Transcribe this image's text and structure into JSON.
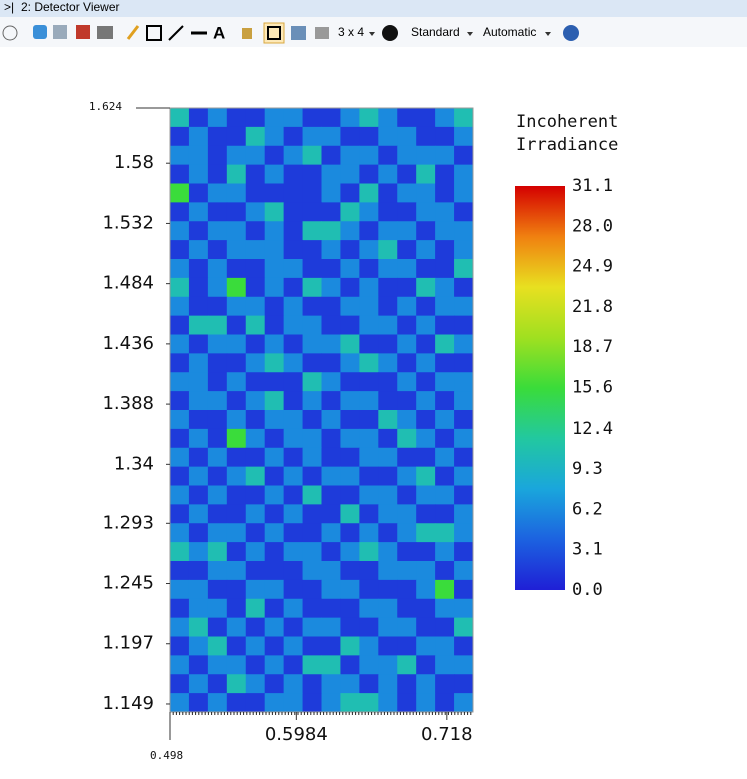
{
  "window": {
    "title": "2: Detector Viewer",
    "toolbar": [
      "3 x 4",
      "Standard",
      "Automatic"
    ]
  },
  "chart_data": {
    "type": "heatmap",
    "colorbar_title": [
      "Incoherent",
      "Irradiance"
    ],
    "xlim": [
      0.498,
      0.7388
    ],
    "ylim": [
      1.1426,
      1.624
    ],
    "xticks": [
      0.498,
      0.5984,
      0.718
    ],
    "yticks": [
      1.149,
      1.197,
      1.245,
      1.293,
      1.34,
      1.388,
      1.436,
      1.484,
      1.532,
      1.58,
      1.624
    ],
    "zlim": [
      0,
      31.1
    ],
    "zticks": [
      {
        "value": 0,
        "label": "0.0"
      },
      3.1,
      6.2,
      9.3,
      12.4,
      15.6,
      18.7,
      21.8,
      24.9,
      {
        "value": 28,
        "label": "28.0"
      },
      31.1
    ],
    "colorscale": [
      "#1f1fd6",
      "#1c62e0",
      "#1aa6dc",
      "#22c8a0",
      "#3adc3a",
      "#a0e020",
      "#e8e020",
      "#f08010",
      "#d40000"
    ],
    "z": [
      [
        10.5,
        1.6,
        6.2,
        1.6,
        1.6,
        6.2,
        6.2,
        1.6,
        1.6,
        6.2,
        10.5,
        6.2,
        1.6,
        1.6,
        6.2,
        10.5
      ],
      [
        1.6,
        6.2,
        1.6,
        1.6,
        10.5,
        6.2,
        1.6,
        6.2,
        6.2,
        1.6,
        1.6,
        6.2,
        6.2,
        1.6,
        1.6,
        6.2
      ],
      [
        6.2,
        6.2,
        1.6,
        6.2,
        6.2,
        1.6,
        6.2,
        10.5,
        1.6,
        6.2,
        6.2,
        1.6,
        6.2,
        6.2,
        6.2,
        1.6
      ],
      [
        1.6,
        6.2,
        1.6,
        10.5,
        1.6,
        6.2,
        1.6,
        1.6,
        6.2,
        6.2,
        1.6,
        6.2,
        1.6,
        10.5,
        1.6,
        6.2
      ],
      [
        15.5,
        1.6,
        6.2,
        6.2,
        1.6,
        1.6,
        1.6,
        1.6,
        6.2,
        1.6,
        10.5,
        1.6,
        6.2,
        6.2,
        1.6,
        6.2
      ],
      [
        1.6,
        6.2,
        1.6,
        1.6,
        6.2,
        10.5,
        1.6,
        1.6,
        1.6,
        10.5,
        6.2,
        1.6,
        1.6,
        6.2,
        6.2,
        1.6
      ],
      [
        6.2,
        1.6,
        6.2,
        6.2,
        1.6,
        6.2,
        1.6,
        10.5,
        10.5,
        6.2,
        1.6,
        6.2,
        6.2,
        1.6,
        6.2,
        6.2
      ],
      [
        1.6,
        6.2,
        1.6,
        6.2,
        6.2,
        6.2,
        1.6,
        1.6,
        6.2,
        1.6,
        6.2,
        10.5,
        1.6,
        6.2,
        1.6,
        6.2
      ],
      [
        6.2,
        1.6,
        6.2,
        1.6,
        1.6,
        6.2,
        6.2,
        1.6,
        1.6,
        6.2,
        1.6,
        6.2,
        6.2,
        1.6,
        1.6,
        10.5
      ],
      [
        10.5,
        1.6,
        6.2,
        15.5,
        1.6,
        6.2,
        1.6,
        10.5,
        6.2,
        1.6,
        6.2,
        1.6,
        1.6,
        10.5,
        6.2,
        1.6
      ],
      [
        6.2,
        1.6,
        1.6,
        6.2,
        6.2,
        1.6,
        6.2,
        1.6,
        1.6,
        6.2,
        6.2,
        1.6,
        6.2,
        1.6,
        6.2,
        6.2
      ],
      [
        1.6,
        10.5,
        10.5,
        1.6,
        10.5,
        1.6,
        6.2,
        6.2,
        1.6,
        1.6,
        6.2,
        6.2,
        1.6,
        6.2,
        1.6,
        1.6
      ],
      [
        6.2,
        1.6,
        6.2,
        6.2,
        1.6,
        6.2,
        1.6,
        6.2,
        6.2,
        10.5,
        1.6,
        1.6,
        6.2,
        1.6,
        10.5,
        6.2
      ],
      [
        1.6,
        6.2,
        1.6,
        1.6,
        6.2,
        10.5,
        6.2,
        1.6,
        1.6,
        6.2,
        10.5,
        6.2,
        1.6,
        6.2,
        1.6,
        1.6
      ],
      [
        6.2,
        6.2,
        1.6,
        6.2,
        1.6,
        1.6,
        1.6,
        10.5,
        6.2,
        1.6,
        1.6,
        1.6,
        6.2,
        1.6,
        6.2,
        6.2
      ],
      [
        1.6,
        6.2,
        6.2,
        1.6,
        6.2,
        10.5,
        1.6,
        6.2,
        1.6,
        6.2,
        6.2,
        1.6,
        1.6,
        6.2,
        1.6,
        6.2
      ],
      [
        6.2,
        1.6,
        1.6,
        6.2,
        1.6,
        6.2,
        6.2,
        1.6,
        6.2,
        1.6,
        1.6,
        10.5,
        6.2,
        1.6,
        6.2,
        1.6
      ],
      [
        1.6,
        6.2,
        1.6,
        15.5,
        6.2,
        1.6,
        6.2,
        6.2,
        1.6,
        6.2,
        6.2,
        1.6,
        10.5,
        6.2,
        1.6,
        6.2
      ],
      [
        6.2,
        1.6,
        6.2,
        1.6,
        1.6,
        6.2,
        1.6,
        6.2,
        1.6,
        1.6,
        6.2,
        6.2,
        1.6,
        1.6,
        6.2,
        1.6
      ],
      [
        1.6,
        6.2,
        1.6,
        6.2,
        10.5,
        1.6,
        6.2,
        1.6,
        6.2,
        6.2,
        1.6,
        1.6,
        6.2,
        10.5,
        1.6,
        6.2
      ],
      [
        6.2,
        1.6,
        6.2,
        1.6,
        1.6,
        6.2,
        1.6,
        10.5,
        1.6,
        1.6,
        6.2,
        6.2,
        1.6,
        6.2,
        6.2,
        1.6
      ],
      [
        1.6,
        6.2,
        1.6,
        1.6,
        6.2,
        1.6,
        6.2,
        1.6,
        1.6,
        10.5,
        1.6,
        6.2,
        6.2,
        1.6,
        1.6,
        6.2
      ],
      [
        6.2,
        1.6,
        6.2,
        6.2,
        1.6,
        6.2,
        1.6,
        1.6,
        6.2,
        1.6,
        6.2,
        1.6,
        6.2,
        10.5,
        10.5,
        6.2
      ],
      [
        10.5,
        6.2,
        10.5,
        1.6,
        6.2,
        1.6,
        6.2,
        6.2,
        1.6,
        6.2,
        10.5,
        6.2,
        1.6,
        1.6,
        6.2,
        1.6
      ],
      [
        1.6,
        1.6,
        6.2,
        6.2,
        1.6,
        1.6,
        1.6,
        6.2,
        6.2,
        1.6,
        1.6,
        6.2,
        6.2,
        6.2,
        1.6,
        6.2
      ],
      [
        6.2,
        6.2,
        1.6,
        1.6,
        6.2,
        6.2,
        1.6,
        1.6,
        6.2,
        6.2,
        1.6,
        1.6,
        1.6,
        6.2,
        15.5,
        1.6
      ],
      [
        1.6,
        6.2,
        6.2,
        1.6,
        10.5,
        1.6,
        6.2,
        1.6,
        1.6,
        1.6,
        6.2,
        6.2,
        1.6,
        1.6,
        6.2,
        6.2
      ],
      [
        6.2,
        10.5,
        1.6,
        6.2,
        1.6,
        6.2,
        1.6,
        6.2,
        6.2,
        1.6,
        1.6,
        6.2,
        6.2,
        1.6,
        1.6,
        10.5
      ],
      [
        1.6,
        6.2,
        10.5,
        1.6,
        6.2,
        1.6,
        6.2,
        1.6,
        1.6,
        10.5,
        6.2,
        1.6,
        1.6,
        6.2,
        6.2,
        1.6
      ],
      [
        6.2,
        1.6,
        6.2,
        6.2,
        1.6,
        6.2,
        1.6,
        10.5,
        10.5,
        1.6,
        6.2,
        6.2,
        10.5,
        1.6,
        6.2,
        6.2
      ],
      [
        1.6,
        6.2,
        1.6,
        10.5,
        6.2,
        1.6,
        6.2,
        1.6,
        6.2,
        6.2,
        1.6,
        6.2,
        1.6,
        6.2,
        1.6,
        1.6
      ],
      [
        6.2,
        1.6,
        6.2,
        1.6,
        1.6,
        6.2,
        6.2,
        1.6,
        6.2,
        10.5,
        10.5,
        6.2,
        1.6,
        6.2,
        1.6,
        6.2
      ]
    ]
  }
}
